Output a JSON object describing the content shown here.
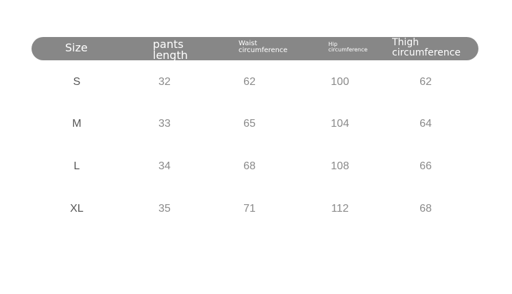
{
  "headers": [
    "Size",
    "pants length",
    "Waist circumference",
    "Hip circumference",
    "Thigh circumference"
  ],
  "header_lines": {
    "pants": [
      "pants",
      "length"
    ],
    "waist": [
      "Waist",
      "circumference"
    ],
    "hip": [
      "Hip",
      "circumference"
    ],
    "thigh": [
      "Thigh",
      "circumference"
    ]
  },
  "rows": [
    [
      "S",
      "32",
      "62",
      "100",
      "62"
    ],
    [
      "M",
      "33",
      "65",
      "104",
      "64"
    ],
    [
      "L",
      "34",
      "68",
      "108",
      "66"
    ],
    [
      "XL",
      "35",
      "71",
      "112",
      "68"
    ]
  ],
  "colors": {
    "header_bg": "#878787",
    "header_text": "#ffffff",
    "cell_text": "#8a8a8a"
  }
}
